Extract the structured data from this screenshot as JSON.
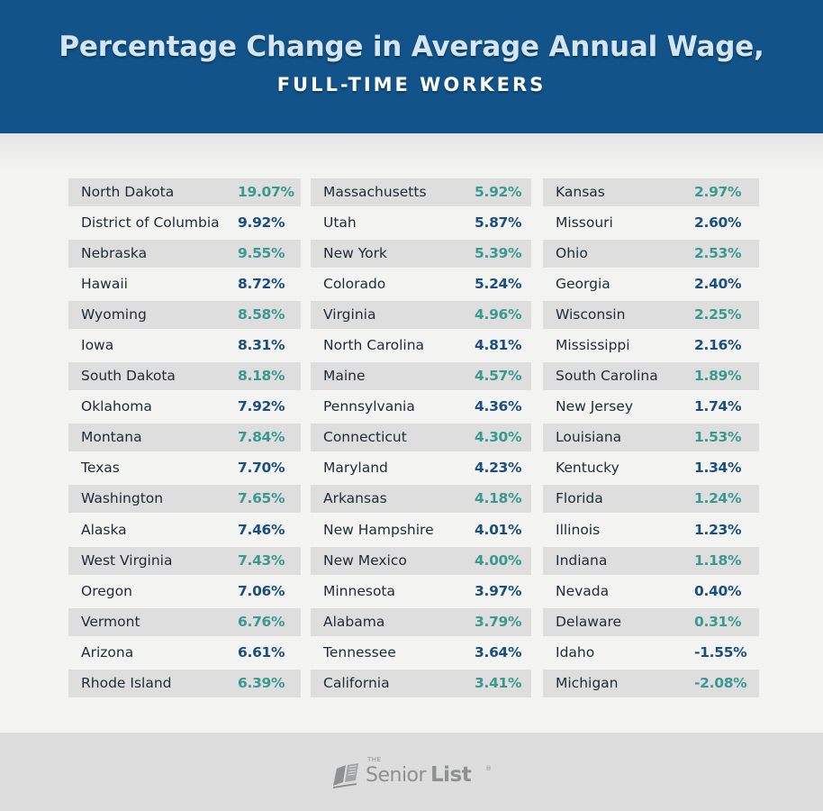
{
  "header": {
    "title": "Percentage Change in Average Annual Wage,",
    "subtitle": "FULL-TIME WORKERS"
  },
  "footer": {
    "logo_the": "THE",
    "logo_senior": "Senior",
    "logo_list": "List",
    "logo_reg": "®",
    "icon": "book-logo-icon"
  },
  "colors": {
    "header_bg": "#12548a",
    "teal": "#3b9a8f",
    "navy": "#1a4f7f",
    "stripe": "#dedede"
  },
  "chart_data": {
    "type": "table",
    "columns": [
      [
        {
          "state": "North Dakota",
          "value": "19.07%"
        },
        {
          "state": "District of Columbia",
          "value": "9.92%"
        },
        {
          "state": "Nebraska",
          "value": "9.55%"
        },
        {
          "state": "Hawaii",
          "value": "8.72%"
        },
        {
          "state": "Wyoming",
          "value": "8.58%"
        },
        {
          "state": "Iowa",
          "value": "8.31%"
        },
        {
          "state": "South Dakota",
          "value": "8.18%"
        },
        {
          "state": "Oklahoma",
          "value": "7.92%"
        },
        {
          "state": "Montana",
          "value": "7.84%"
        },
        {
          "state": "Texas",
          "value": "7.70%"
        },
        {
          "state": "Washington",
          "value": "7.65%"
        },
        {
          "state": "Alaska",
          "value": "7.46%"
        },
        {
          "state": "West Virginia",
          "value": "7.43%"
        },
        {
          "state": "Oregon",
          "value": "7.06%"
        },
        {
          "state": "Vermont",
          "value": "6.76%"
        },
        {
          "state": "Arizona",
          "value": "6.61%"
        },
        {
          "state": "Rhode Island",
          "value": "6.39%"
        }
      ],
      [
        {
          "state": "Massachusetts",
          "value": "5.92%"
        },
        {
          "state": "Utah",
          "value": "5.87%"
        },
        {
          "state": "New York",
          "value": "5.39%"
        },
        {
          "state": "Colorado",
          "value": "5.24%"
        },
        {
          "state": "Virginia",
          "value": "4.96%"
        },
        {
          "state": "North Carolina",
          "value": "4.81%"
        },
        {
          "state": "Maine",
          "value": "4.57%"
        },
        {
          "state": "Pennsylvania",
          "value": "4.36%"
        },
        {
          "state": "Connecticut",
          "value": "4.30%"
        },
        {
          "state": "Maryland",
          "value": "4.23%"
        },
        {
          "state": "Arkansas",
          "value": "4.18%"
        },
        {
          "state": "New Hampshire",
          "value": "4.01%"
        },
        {
          "state": "New Mexico",
          "value": "4.00%"
        },
        {
          "state": "Minnesota",
          "value": "3.97%"
        },
        {
          "state": "Alabama",
          "value": "3.79%"
        },
        {
          "state": "Tennessee",
          "value": "3.64%"
        },
        {
          "state": "California",
          "value": "3.41%"
        }
      ],
      [
        {
          "state": "Kansas",
          "value": "2.97%"
        },
        {
          "state": "Missouri",
          "value": "2.60%"
        },
        {
          "state": "Ohio",
          "value": "2.53%"
        },
        {
          "state": "Georgia",
          "value": "2.40%"
        },
        {
          "state": "Wisconsin",
          "value": "2.25%"
        },
        {
          "state": "Mississippi",
          "value": "2.16%"
        },
        {
          "state": "South Carolina",
          "value": "1.89%"
        },
        {
          "state": "New Jersey",
          "value": "1.74%"
        },
        {
          "state": "Louisiana",
          "value": "1.53%"
        },
        {
          "state": "Kentucky",
          "value": "1.34%"
        },
        {
          "state": "Florida",
          "value": "1.24%"
        },
        {
          "state": "Illinois",
          "value": "1.23%"
        },
        {
          "state": "Indiana",
          "value": "1.18%"
        },
        {
          "state": "Nevada",
          "value": "0.40%"
        },
        {
          "state": "Delaware",
          "value": "0.31%"
        },
        {
          "state": "Idaho",
          "value": "-1.55%"
        },
        {
          "state": "Michigan",
          "value": "-2.08%"
        }
      ]
    ]
  }
}
